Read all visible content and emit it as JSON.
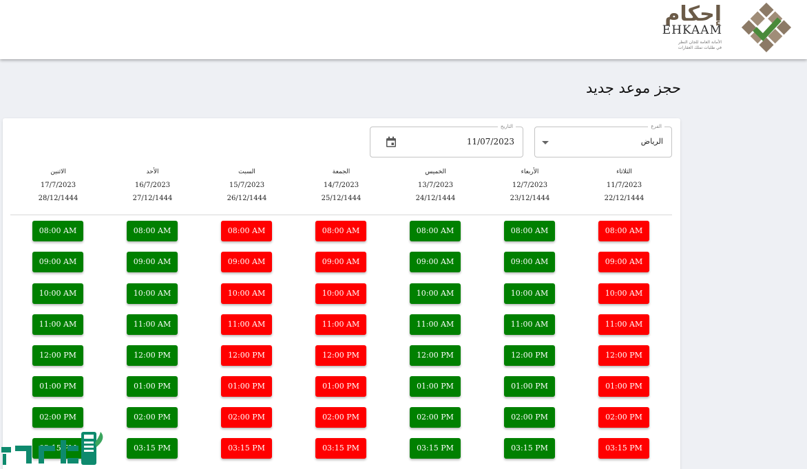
{
  "header": {
    "logo_ar": "إحكام",
    "logo_en": "EHKAAM",
    "logo_sub_line1": "الأمانة العامة للجان النظر",
    "logo_sub_line2": "في طلبات تملك العقارات"
  },
  "page_title": "حجز موعد جديد",
  "form": {
    "branch_label": "الفرع",
    "branch_value": "الرياض",
    "date_label": "التاريخ",
    "date_value": "11/07/2023"
  },
  "days": [
    {
      "name": "الثلاثاء",
      "gregorian": "11/7/2023",
      "hijri": "22/12/1444"
    },
    {
      "name": "الأربعاء",
      "gregorian": "12/7/2023",
      "hijri": "23/12/1444"
    },
    {
      "name": "الخميس",
      "gregorian": "13/7/2023",
      "hijri": "24/12/1444"
    },
    {
      "name": "الجمعة",
      "gregorian": "14/7/2023",
      "hijri": "25/12/1444"
    },
    {
      "name": "السبت",
      "gregorian": "15/7/2023",
      "hijri": "26/12/1444"
    },
    {
      "name": "الأحد",
      "gregorian": "16/7/2023",
      "hijri": "27/12/1444"
    },
    {
      "name": "الاثنين",
      "gregorian": "17/7/2023",
      "hijri": "28/12/1444"
    }
  ],
  "time_slots": [
    "08:00 AM",
    "09:00 AM",
    "10:00 AM",
    "11:00 AM",
    "12:00 PM",
    "01:00 PM",
    "02:00 PM",
    "03:15 PM"
  ],
  "day_status": [
    "booked",
    "available",
    "available",
    "booked",
    "booked",
    "available",
    "available"
  ],
  "colors": {
    "available": "#008000",
    "booked": "#ff0000",
    "logo_brown": "#6b5b48",
    "logo_green": "#4a8a3a"
  },
  "icons": {
    "date_picker": "calendar-icon",
    "branch_dropdown": "caret-down-icon"
  },
  "watermark_text": "ثقفني"
}
